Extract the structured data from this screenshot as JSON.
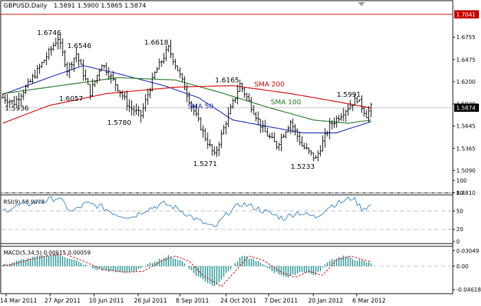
{
  "header": {
    "symbol_label": "GBPUSD,Daily",
    "ohlc_label": "1.5891 1.5900 1.5865 1.5874"
  },
  "colors": {
    "background": "#ffffff",
    "frame": "#000000",
    "grid": "#c0c0c0",
    "candles": "#000000",
    "sma50": "#1f2fbf",
    "sma100": "#1f7a1f",
    "sma200": "#d40000",
    "rsi": "#3a86c8",
    "macd_hist": "#2e9a9a",
    "macd_signal": "#d40000",
    "price_box": "#000000",
    "alert_box": "#c80000"
  },
  "chart_data": [
    {
      "type": "line",
      "panel": "price",
      "x_ticks": [
        "14 Mar 2011",
        "27 Apr 2011",
        "10 Jun 2011",
        "26 Jul 2011",
        "8 Sep 2011",
        "24 Oct 2011",
        "7 Dec 2011",
        "20 Jan 2012",
        "6 Mar 2012"
      ],
      "y_ticks": [
        1.6755,
        1.6475,
        1.62,
        1.592,
        1.5645,
        1.5365,
        1.509,
        1.481
      ],
      "ylim": [
        1.481,
        1.71
      ],
      "current_price": 1.5874,
      "alert_level": 1.7041,
      "price_path": [
        [
          0,
          1.6
        ],
        [
          5,
          1.5936
        ],
        [
          12,
          1.62
        ],
        [
          18,
          1.647
        ],
        [
          24,
          1.6746
        ],
        [
          28,
          1.635
        ],
        [
          32,
          1.6546
        ],
        [
          38,
          1.6057
        ],
        [
          43,
          1.643
        ],
        [
          49,
          1.617
        ],
        [
          55,
          1.588
        ],
        [
          60,
          1.578
        ],
        [
          66,
          1.63
        ],
        [
          72,
          1.6618
        ],
        [
          76,
          1.635
        ],
        [
          82,
          1.59
        ],
        [
          88,
          1.55
        ],
        [
          92,
          1.5271
        ],
        [
          97,
          1.57
        ],
        [
          103,
          1.6165
        ],
        [
          107,
          1.595
        ],
        [
          113,
          1.56
        ],
        [
          119,
          1.54
        ],
        [
          125,
          1.57
        ],
        [
          130,
          1.54
        ],
        [
          136,
          1.5233
        ],
        [
          142,
          1.565
        ],
        [
          149,
          1.585
        ],
        [
          154,
          1.5991
        ],
        [
          158,
          1.578
        ],
        [
          160,
          1.5874
        ]
      ],
      "series": [
        {
          "name": "SMA 50",
          "values": [
            [
              0,
              1.604
            ],
            [
              20,
              1.625
            ],
            [
              35,
              1.64
            ],
            [
              50,
              1.63
            ],
            [
              70,
              1.615
            ],
            [
              85,
              1.6
            ],
            [
              100,
              1.572
            ],
            [
              115,
              1.564
            ],
            [
              130,
              1.556
            ],
            [
              145,
              1.556
            ],
            [
              160,
              1.57
            ]
          ]
        },
        {
          "name": "SMA 100",
          "values": [
            [
              0,
              1.605
            ],
            [
              25,
              1.615
            ],
            [
              50,
              1.625
            ],
            [
              75,
              1.622
            ],
            [
              95,
              1.606
            ],
            [
              115,
              1.588
            ],
            [
              135,
              1.572
            ],
            [
              150,
              1.568
            ],
            [
              160,
              1.572
            ]
          ]
        },
        {
          "name": "SMA 200",
          "values": [
            [
              0,
              1.568
            ],
            [
              20,
              1.59
            ],
            [
              45,
              1.605
            ],
            [
              75,
              1.613
            ],
            [
              100,
              1.615
            ],
            [
              125,
              1.605
            ],
            [
              145,
              1.595
            ],
            [
              160,
              1.587
            ]
          ]
        }
      ],
      "annotations": [
        "1.6746",
        "1.6546",
        "1.6057",
        "1.5936",
        "1.5780",
        "1.6618",
        "1.5271",
        "1.6165",
        "1.5233",
        "1.5991",
        "SMA 200",
        "SMA 100",
        "SMA 50"
      ]
    },
    {
      "type": "line",
      "panel": "rsi",
      "title": "RSI(9) 58.9078",
      "y_ticks": [
        100,
        80,
        50,
        20,
        0
      ],
      "levels": [
        80,
        50,
        20
      ],
      "ylim": [
        0,
        100
      ],
      "values": [
        [
          0,
          50
        ],
        [
          8,
          60
        ],
        [
          18,
          66
        ],
        [
          24,
          72
        ],
        [
          30,
          48
        ],
        [
          36,
          62
        ],
        [
          42,
          58
        ],
        [
          50,
          44
        ],
        [
          56,
          40
        ],
        [
          62,
          52
        ],
        [
          70,
          62
        ],
        [
          76,
          54
        ],
        [
          84,
          36
        ],
        [
          92,
          22
        ],
        [
          98,
          48
        ],
        [
          104,
          62
        ],
        [
          110,
          55
        ],
        [
          116,
          46
        ],
        [
          122,
          38
        ],
        [
          128,
          48
        ],
        [
          136,
          40
        ],
        [
          142,
          58
        ],
        [
          148,
          66
        ],
        [
          152,
          72
        ],
        [
          156,
          54
        ],
        [
          160,
          59
        ]
      ]
    },
    {
      "type": "bar",
      "panel": "macd",
      "title": "MACD(5,34,5) 0.00615 0.00059",
      "y_ticks": [
        0.03049,
        0.0,
        -0.04618
      ],
      "ylim": [
        -0.05,
        0.035
      ],
      "values": [
        [
          0,
          0.002
        ],
        [
          8,
          0.012
        ],
        [
          16,
          0.02
        ],
        [
          24,
          0.024
        ],
        [
          32,
          0.01
        ],
        [
          40,
          -0.006
        ],
        [
          50,
          -0.012
        ],
        [
          58,
          -0.01
        ],
        [
          66,
          0.01
        ],
        [
          72,
          0.02
        ],
        [
          78,
          0.01
        ],
        [
          84,
          -0.018
        ],
        [
          92,
          -0.04
        ],
        [
          98,
          -0.01
        ],
        [
          104,
          0.02
        ],
        [
          110,
          0.012
        ],
        [
          118,
          -0.012
        ],
        [
          124,
          -0.022
        ],
        [
          130,
          -0.01
        ],
        [
          136,
          -0.018
        ],
        [
          142,
          0.012
        ],
        [
          148,
          0.02
        ],
        [
          154,
          0.012
        ],
        [
          160,
          0.006
        ]
      ]
    }
  ]
}
